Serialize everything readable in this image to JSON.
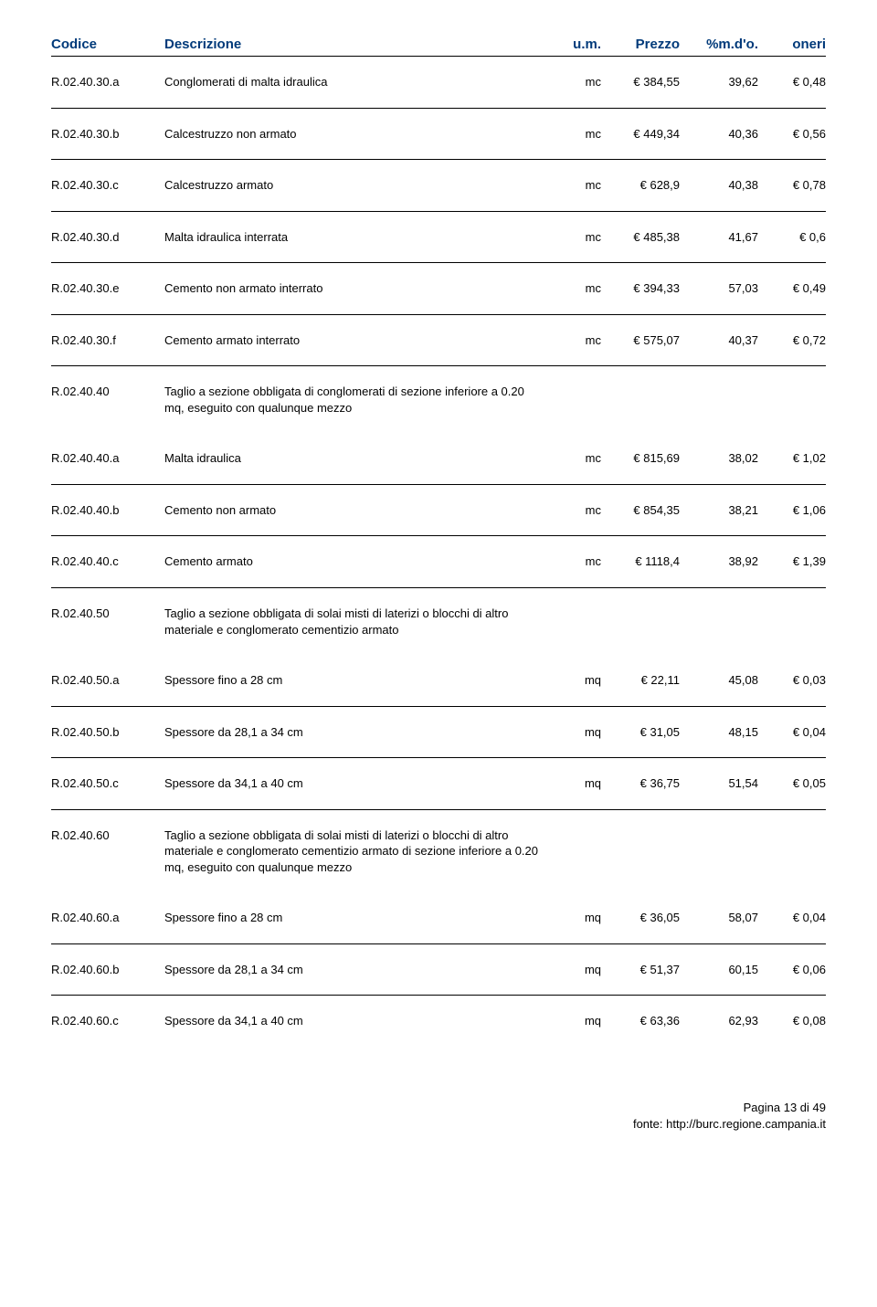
{
  "header": {
    "codice": "Codice",
    "descrizione": "Descrizione",
    "um": "u.m.",
    "prezzo": "Prezzo",
    "pct": "%m.d'o.",
    "oneri": "oneri"
  },
  "rows": [
    {
      "codice": "R.02.40.30.a",
      "desc": "Conglomerati di malta idraulica",
      "um": "mc",
      "prezzo": "€ 384,55",
      "pct": "39,62",
      "oneri": "€ 0,48",
      "section": false
    },
    {
      "codice": "R.02.40.30.b",
      "desc": "Calcestruzzo non armato",
      "um": "mc",
      "prezzo": "€ 449,34",
      "pct": "40,36",
      "oneri": "€ 0,56",
      "section": false
    },
    {
      "codice": "R.02.40.30.c",
      "desc": "Calcestruzzo armato",
      "um": "mc",
      "prezzo": "€ 628,9",
      "pct": "40,38",
      "oneri": "€ 0,78",
      "section": false
    },
    {
      "codice": "R.02.40.30.d",
      "desc": "Malta idraulica interrata",
      "um": "mc",
      "prezzo": "€ 485,38",
      "pct": "41,67",
      "oneri": "€ 0,6",
      "section": false
    },
    {
      "codice": "R.02.40.30.e",
      "desc": "Cemento non armato interrato",
      "um": "mc",
      "prezzo": "€ 394,33",
      "pct": "57,03",
      "oneri": "€ 0,49",
      "section": false
    },
    {
      "codice": "R.02.40.30.f",
      "desc": "Cemento armato interrato",
      "um": "mc",
      "prezzo": "€ 575,07",
      "pct": "40,37",
      "oneri": "€ 0,72",
      "section": false
    },
    {
      "codice": "R.02.40.40",
      "desc": "Taglio a sezione obbligata di conglomerati di sezione inferiore a 0.20 mq, eseguito con qualunque mezzo",
      "um": "",
      "prezzo": "",
      "pct": "",
      "oneri": "",
      "section": true
    },
    {
      "codice": "R.02.40.40.a",
      "desc": "Malta idraulica",
      "um": "mc",
      "prezzo": "€ 815,69",
      "pct": "38,02",
      "oneri": "€ 1,02",
      "section": false
    },
    {
      "codice": "R.02.40.40.b",
      "desc": "Cemento non armato",
      "um": "mc",
      "prezzo": "€ 854,35",
      "pct": "38,21",
      "oneri": "€ 1,06",
      "section": false
    },
    {
      "codice": "R.02.40.40.c",
      "desc": "Cemento armato",
      "um": "mc",
      "prezzo": "€ 1118,4",
      "pct": "38,92",
      "oneri": "€ 1,39",
      "section": false
    },
    {
      "codice": "R.02.40.50",
      "desc": "Taglio a sezione obbligata di solai misti di laterizi o blocchi di altro materiale e conglomerato cementizio armato",
      "um": "",
      "prezzo": "",
      "pct": "",
      "oneri": "",
      "section": true
    },
    {
      "codice": "R.02.40.50.a",
      "desc": "Spessore fino a 28 cm",
      "um": "mq",
      "prezzo": "€ 22,11",
      "pct": "45,08",
      "oneri": "€ 0,03",
      "section": false
    },
    {
      "codice": "R.02.40.50.b",
      "desc": "Spessore da 28,1 a 34 cm",
      "um": "mq",
      "prezzo": "€ 31,05",
      "pct": "48,15",
      "oneri": "€ 0,04",
      "section": false
    },
    {
      "codice": "R.02.40.50.c",
      "desc": "Spessore da 34,1 a 40 cm",
      "um": "mq",
      "prezzo": "€ 36,75",
      "pct": "51,54",
      "oneri": "€ 0,05",
      "section": false
    },
    {
      "codice": "R.02.40.60",
      "desc": "Taglio a sezione obbligata di solai misti di laterizi o blocchi di altro materiale e conglomerato cementizio armato di sezione inferiore a 0.20 mq, eseguito con qualunque mezzo",
      "um": "",
      "prezzo": "",
      "pct": "",
      "oneri": "",
      "section": true
    },
    {
      "codice": "R.02.40.60.a",
      "desc": "Spessore fino a 28 cm",
      "um": "mq",
      "prezzo": "€ 36,05",
      "pct": "58,07",
      "oneri": "€ 0,04",
      "section": false
    },
    {
      "codice": "R.02.40.60.b",
      "desc": "Spessore da 28,1 a 34 cm",
      "um": "mq",
      "prezzo": "€ 51,37",
      "pct": "60,15",
      "oneri": "€ 0,06",
      "section": false
    },
    {
      "codice": "R.02.40.60.c",
      "desc": "Spessore da 34,1 a 40 cm",
      "um": "mq",
      "prezzo": "€ 63,36",
      "pct": "62,93",
      "oneri": "€ 0,08",
      "section": false
    }
  ],
  "footer": {
    "page": "Pagina 13 di 49",
    "source_label": "fonte: ",
    "source_url": "http://burc.regione.campania.it"
  },
  "style": {
    "header_color": "#003a7a",
    "text_color": "#000000",
    "background": "#ffffff",
    "border_color": "#000000",
    "body_font_size": 13,
    "header_font_size": 15,
    "col_widths": {
      "codice": 124,
      "um": 54,
      "prezzo": 86,
      "pct": 86,
      "oneri": 74
    }
  }
}
